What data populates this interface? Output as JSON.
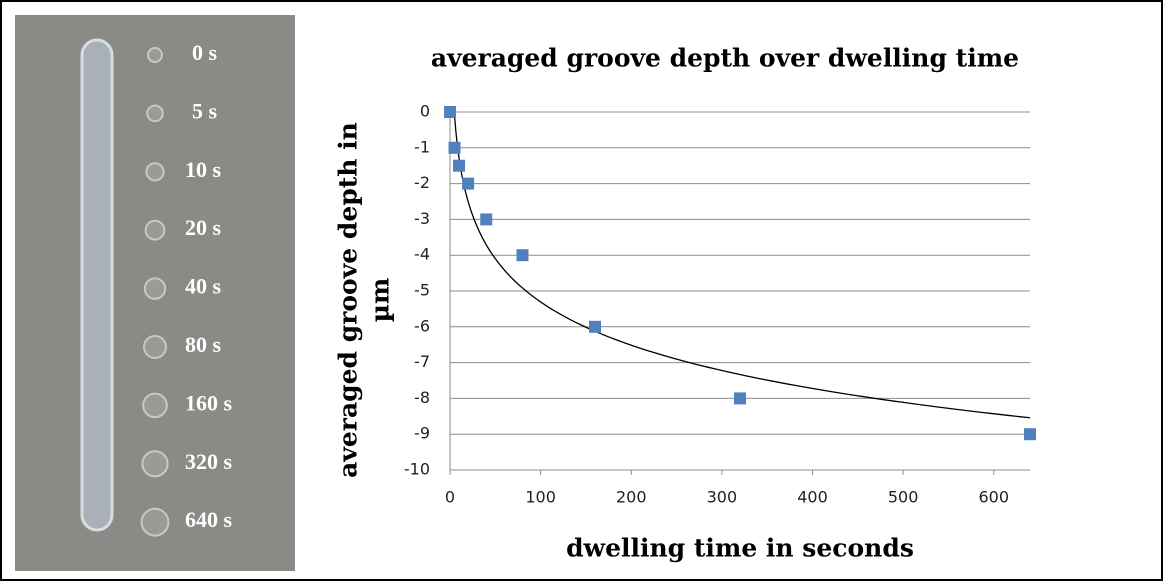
{
  "photo": {
    "labels": [
      "0 s",
      "5 s",
      "10 s",
      "20 s",
      "40 s",
      "80 s",
      "160 s",
      "320 s",
      "640 s"
    ]
  },
  "chart_data": {
    "type": "scatter",
    "title": "averaged groove depth over dwelling time",
    "x_label": "dwelling time in seconds",
    "y_label": [
      "averaged groove depth in",
      "µm"
    ],
    "x": [
      0,
      5,
      10,
      20,
      40,
      80,
      160,
      320,
      640
    ],
    "values": [
      0,
      -1,
      -1.5,
      -2,
      -3,
      -4,
      -6,
      -8,
      -9
    ],
    "color": "#4f81bd",
    "trendline": "logarithmic",
    "xlim": [
      0,
      640
    ],
    "xticks": [
      0,
      100,
      200,
      300,
      400,
      500,
      600
    ],
    "ylim": [
      -10,
      0
    ],
    "yticks": [
      0,
      -1,
      -2,
      -3,
      -4,
      -5,
      -6,
      -7,
      -8,
      -9,
      -10
    ],
    "grid": true
  }
}
